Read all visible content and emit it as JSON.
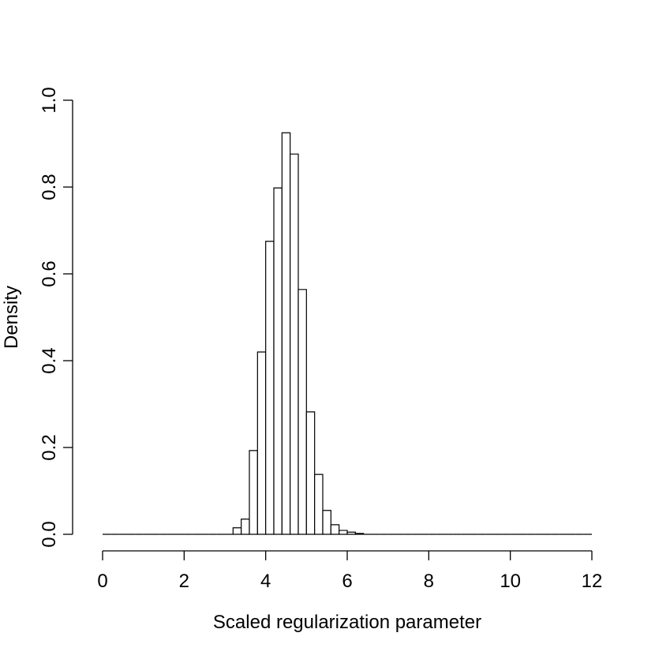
{
  "chart_data": {
    "type": "histogram",
    "x_label": "Scaled regularization parameter",
    "y_label": "Density",
    "bins": [
      0,
      0.2,
      0.4,
      0.6,
      0.8,
      1,
      1.2,
      1.4,
      1.6,
      1.8,
      2,
      2.2,
      2.4,
      2.6,
      2.8,
      3,
      3.2,
      3.4,
      3.6,
      3.8,
      4,
      4.2,
      4.4,
      4.6,
      4.8,
      5,
      5.2,
      5.4,
      5.6,
      5.8,
      6,
      6.2,
      6.4,
      6.6,
      6.8,
      7,
      7.2,
      7.4,
      7.6,
      7.8,
      8,
      8.2,
      8.4,
      8.6,
      8.8,
      9,
      9.2,
      9.4,
      9.6,
      9.8,
      10,
      10.2,
      10.4,
      10.6,
      10.8,
      11,
      11.2,
      11.4,
      11.6,
      11.8,
      12
    ],
    "values": [
      0,
      0,
      0,
      0,
      0,
      0,
      0,
      0,
      0,
      0,
      0,
      0,
      0,
      0,
      0,
      0,
      0.015,
      0.035,
      0.193,
      0.42,
      0.675,
      0.798,
      0.925,
      0.876,
      0.564,
      0.282,
      0.138,
      0.055,
      0.022,
      0.009,
      0.005,
      0.002,
      0,
      0,
      0,
      0,
      0,
      0,
      0,
      0,
      0,
      0,
      0,
      0,
      0,
      0,
      0,
      0,
      0,
      0,
      0,
      0,
      0,
      0,
      0,
      0,
      0,
      0,
      0,
      0
    ],
    "color": "#ffffff",
    "xlim": [
      0,
      12
    ],
    "xticks": [
      0,
      2,
      4,
      6,
      8,
      10,
      12
    ],
    "ylim": [
      0,
      1
    ],
    "yticks": [
      {
        "value": 0,
        "label": "0.0"
      },
      {
        "value": 0.2,
        "label": "0.2"
      },
      {
        "value": 0.4,
        "label": "0.4"
      },
      {
        "value": 0.6,
        "label": "0.6"
      },
      {
        "value": 0.8,
        "label": "0.8"
      },
      {
        "value": 1,
        "label": "1.0"
      }
    ]
  }
}
